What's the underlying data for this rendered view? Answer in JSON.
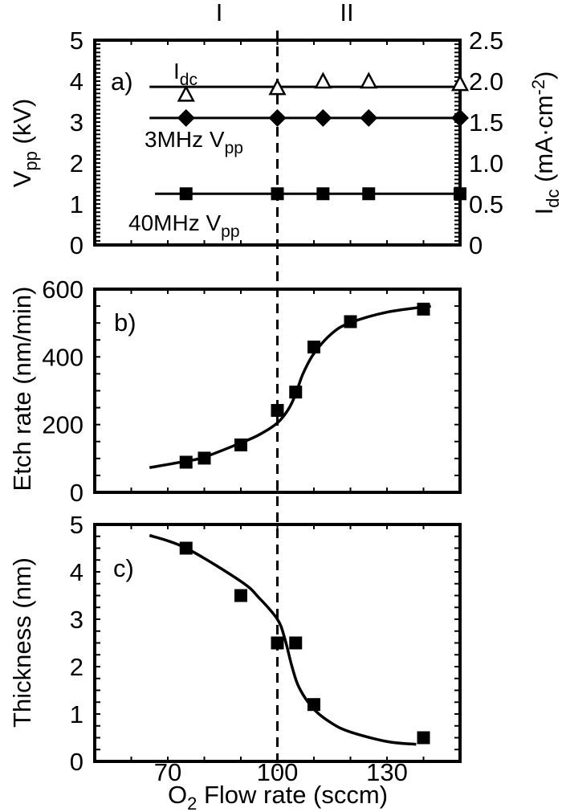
{
  "chart_data": [
    {
      "panel": "a)",
      "type": "scatter",
      "ylabel": "V",
      "ylabel_sub": "pp",
      "ylabel_unit": " (kV)",
      "ylabel_right": "I",
      "ylabel_right_sub": "dc",
      "ylabel_right_unit": " (mA·cm",
      "ylabel_right_sup": "-2",
      "ylabel_right_close": ")",
      "xlim": [
        50,
        150
      ],
      "ylim": [
        0,
        5
      ],
      "ylim_right": [
        0,
        2.5
      ],
      "yticks": [
        "0",
        "1",
        "2",
        "3",
        "4",
        "5"
      ],
      "yticks_right": [
        "0",
        "0.5",
        "1.0",
        "1.5",
        "2.0",
        "2.5"
      ],
      "regions": [
        "I",
        "II"
      ],
      "divider_x": 100,
      "series": [
        {
          "name": "I",
          "name_sub": "dc",
          "marker": "open-triangle",
          "axis": "right",
          "x": [
            75,
            100,
            112.5,
            125,
            150
          ],
          "y": [
            1.83,
            1.91,
            1.99,
            1.99,
            1.96
          ],
          "fit_level": 1.93,
          "fit_range": [
            65,
            150
          ]
        },
        {
          "name": "3MHz V",
          "name_sub": "pp",
          "marker": "diamond",
          "axis": "left",
          "x": [
            75,
            100,
            112.5,
            125,
            150
          ],
          "y": [
            3.1,
            3.1,
            3.1,
            3.1,
            3.1
          ],
          "fit_level": 3.1,
          "fit_range": [
            65,
            150
          ]
        },
        {
          "name": "40MHz V",
          "name_sub": "pp",
          "marker": "square",
          "axis": "left",
          "x": [
            75,
            100,
            112.5,
            125,
            150
          ],
          "y": [
            1.25,
            1.25,
            1.25,
            1.25,
            1.25
          ],
          "fit_level": 1.25,
          "fit_range": [
            66.5,
            150
          ]
        }
      ]
    },
    {
      "panel": "b)",
      "type": "scatter",
      "ylabel": "Etch rate (nm/min)",
      "xlim": [
        50,
        150
      ],
      "ylim": [
        0,
        600
      ],
      "yticks": [
        "0",
        "200",
        "400",
        "600"
      ],
      "series": [
        {
          "marker": "square",
          "x": [
            75,
            80,
            90,
            100,
            105,
            110,
            120,
            140
          ],
          "y": [
            89,
            101,
            140,
            242,
            296,
            429,
            504,
            541
          ]
        }
      ],
      "fit_curve": {
        "x": [
          65,
          75,
          80,
          90,
          95,
          100,
          103,
          105,
          107,
          110,
          115,
          120,
          130,
          142
        ],
        "y": [
          73,
          92,
          104,
          146,
          170,
          205,
          245,
          290,
          350,
          410,
          470,
          501,
          532,
          550
        ]
      }
    },
    {
      "panel": "c)",
      "type": "scatter",
      "ylabel": "Thickness (nm)",
      "xlabel": "O",
      "xlabel_sub": "2",
      "xlabel_rest": " Flow rate (sccm)",
      "xlim": [
        50,
        150
      ],
      "ylim": [
        0,
        5
      ],
      "yticks": [
        "0",
        "1",
        "2",
        "3",
        "4",
        "5"
      ],
      "xticks": [
        "70",
        "100",
        "130"
      ],
      "series": [
        {
          "marker": "square",
          "x": [
            75,
            90,
            100,
            105,
            110,
            140
          ],
          "y": [
            4.5,
            3.5,
            2.5,
            2.5,
            1.2,
            0.5
          ]
        }
      ],
      "fit_curve": {
        "x": [
          65,
          75,
          90,
          95,
          100,
          102,
          104,
          106,
          110,
          115,
          120,
          130,
          138
        ],
        "y": [
          4.77,
          4.5,
          3.8,
          3.45,
          3.0,
          2.6,
          2.0,
          1.55,
          1.1,
          0.8,
          0.62,
          0.42,
          0.36
        ]
      }
    }
  ]
}
